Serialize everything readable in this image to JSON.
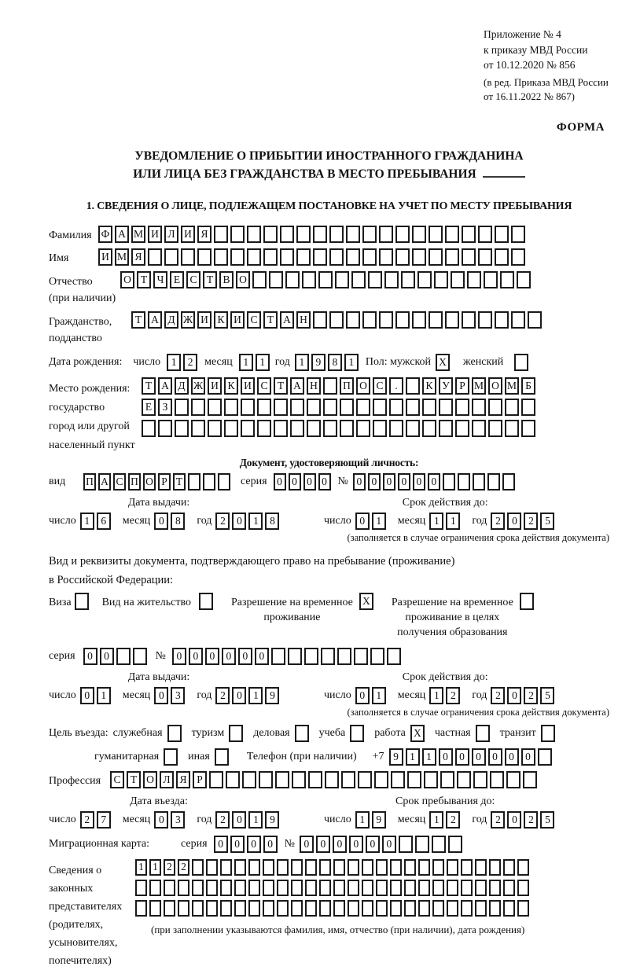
{
  "accent": {
    "ink": "#111111",
    "box_border": "#1a1a1a"
  },
  "header": {
    "annex_line1": "Приложение № 4",
    "annex_line2": "к приказу МВД России",
    "annex_line3": "от 10.12.2020 № 856",
    "annex_note1": "(в ред. Приказа МВД России",
    "annex_note2": "от 16.11.2022 № 867)",
    "form_label": "ФОРМА"
  },
  "title": {
    "line1": "УВЕДОМЛЕНИЕ О ПРИБЫТИИ ИНОСТРАННОГО ГРАЖДАНИНА",
    "line2": "ИЛИ ЛИЦА БЕЗ ГРАЖДАНСТВА В МЕСТО ПРЕБЫВАНИЯ"
  },
  "section1": {
    "heading": "1. СВЕДЕНИЯ О ЛИЦЕ, ПОДЛЕЖАЩЕМ ПОСТАНОВКЕ НА УЧЕТ ПО МЕСТУ ПРЕБЫВАНИЯ"
  },
  "date_labels": {
    "day": "число",
    "month": "месяц",
    "year": "год"
  },
  "surname": {
    "label": "Фамилия",
    "cells": {
      "v": "ФАМИЛИЯ",
      "n": 26
    }
  },
  "firstname": {
    "label": "Имя",
    "cells": {
      "v": "ИМЯ",
      "n": 26
    }
  },
  "patronymic": {
    "label1": "Отчество",
    "label2": "(при наличии)",
    "cells": {
      "v": "ОТЧЕСТВО",
      "n": 25
    }
  },
  "citizenship": {
    "label1": "Гражданство,",
    "label2": "подданство",
    "cells": {
      "v": "ТАДЖИКИСТАН",
      "n": 25
    }
  },
  "birth": {
    "label": "Дата рождения:",
    "day": {
      "v": "12",
      "n": 2
    },
    "month": {
      "v": "11",
      "n": 2
    },
    "year": {
      "v": "1981",
      "n": 4
    },
    "gender_male_label": "Пол: мужской",
    "male": {
      "v": "X",
      "n": 1
    },
    "gender_female_label": "женский",
    "female": {
      "v": "",
      "n": 1
    }
  },
  "birthplace": {
    "label1": "Место рождения:",
    "label2": "государство",
    "label3": "город или другой",
    "label4": "населенный пункт",
    "row1": {
      "v": "ТАДЖИКИСТАН ПОС. КУРМОМБ",
      "n": 24
    },
    "row2": {
      "v": "ЕЗ",
      "n": 24
    },
    "row3": {
      "v": "",
      "n": 24
    }
  },
  "identity_doc": {
    "heading": "Документ, удостоверяющий личность:",
    "kind_label": "вид",
    "kind": {
      "v": "ПАСПОРТ",
      "n": 10
    },
    "series_label": "серия",
    "series": {
      "v": "0000",
      "n": 4
    },
    "number_label": "№",
    "number": {
      "v": "000000",
      "n": 11
    },
    "issue_heading": "Дата выдачи:",
    "issue": {
      "day": {
        "v": "16",
        "n": 2
      },
      "month": {
        "v": "08",
        "n": 2
      },
      "year": {
        "v": "2018",
        "n": 4
      }
    },
    "expiry_heading": "Срок действия до:",
    "expiry": {
      "day": {
        "v": "01",
        "n": 2
      },
      "month": {
        "v": "11",
        "n": 2
      },
      "year": {
        "v": "2025",
        "n": 4
      }
    },
    "note": "(заполняется в случае ограничения срока действия документа)"
  },
  "residence_doc": {
    "intro1": "Вид и реквизиты документа, подтверждающего право на пребывание (проживание)",
    "intro2": "в Российской Федерации:",
    "opt_visa_label": "Виза",
    "opt_visa": {
      "v": "",
      "n": 1
    },
    "opt_residence_label": "Вид на жительство",
    "opt_residence": {
      "v": "",
      "n": 1
    },
    "opt_temp_label1": "Разрешение на временное",
    "opt_temp_label2": "проживание",
    "opt_temp": {
      "v": "X",
      "n": 1
    },
    "opt_edu_label1": "Разрешение на временное",
    "opt_edu_label2": "проживание в целях",
    "opt_edu_label3": "получения образования",
    "opt_edu": {
      "v": "",
      "n": 1
    },
    "series_label": "серия",
    "series": {
      "v": "00",
      "n": 4
    },
    "number_label": "№",
    "number": {
      "v": "000000",
      "n": 14
    },
    "issue_heading": "Дата выдачи:",
    "issue": {
      "day": {
        "v": "01",
        "n": 2
      },
      "month": {
        "v": "03",
        "n": 2
      },
      "year": {
        "v": "2019",
        "n": 4
      }
    },
    "expiry_heading": "Срок действия до:",
    "expiry": {
      "day": {
        "v": "01",
        "n": 2
      },
      "month": {
        "v": "12",
        "n": 2
      },
      "year": {
        "v": "2025",
        "n": 4
      }
    },
    "note": "(заполняется в случае ограничения срока действия документа)"
  },
  "purpose": {
    "label": "Цель въезда:",
    "opt1_label": "служебная",
    "opt1": {
      "v": "",
      "n": 1
    },
    "opt2_label": "туризм",
    "opt2": {
      "v": "",
      "n": 1
    },
    "opt3_label": "деловая",
    "opt3": {
      "v": "",
      "n": 1
    },
    "opt4_label": "учеба",
    "opt4": {
      "v": "",
      "n": 1
    },
    "opt5_label": "работа",
    "opt5": {
      "v": "X",
      "n": 1
    },
    "opt6_label": "частная",
    "opt6": {
      "v": "",
      "n": 1
    },
    "opt7_label": "транзит",
    "opt7": {
      "v": "",
      "n": 1
    },
    "opt8_label": "гуманитарная",
    "opt8": {
      "v": "",
      "n": 1
    },
    "opt9_label": "иная",
    "opt9": {
      "v": "",
      "n": 1
    }
  },
  "phone": {
    "label": "Телефон (при наличии)",
    "prefix": "+7",
    "digits": {
      "v": "911000000",
      "n": 10
    }
  },
  "profession": {
    "label": "Профессия",
    "cells": {
      "v": "СТОЛЯР",
      "n": 26
    }
  },
  "entry": {
    "heading": "Дата въезда:",
    "date": {
      "day": {
        "v": "27",
        "n": 2
      },
      "month": {
        "v": "03",
        "n": 2
      },
      "year": {
        "v": "2019",
        "n": 4
      }
    }
  },
  "stay": {
    "heading": "Срок пребывания до:",
    "date": {
      "day": {
        "v": "19",
        "n": 2
      },
      "month": {
        "v": "12",
        "n": 2
      },
      "year": {
        "v": "2025",
        "n": 4
      }
    }
  },
  "migration_card": {
    "label": "Миграционная карта:",
    "series_label": "серия",
    "series": {
      "v": "0000",
      "n": 4
    },
    "number_label": "№",
    "number": {
      "v": "000000",
      "n": 10
    }
  },
  "representatives": {
    "label1": "Сведения о",
    "label2": "законных",
    "label3": "представителях",
    "label4": "(родителях,",
    "label5": "усыновителях,",
    "label6": "попечителях)",
    "row1": {
      "v": "1122",
      "n": 28
    },
    "row2": {
      "v": "",
      "n": 28
    },
    "row3": {
      "v": "",
      "n": 28
    },
    "note": "(при заполнении указываются фамилия, имя, отчество (при наличии), дата рождения)"
  }
}
